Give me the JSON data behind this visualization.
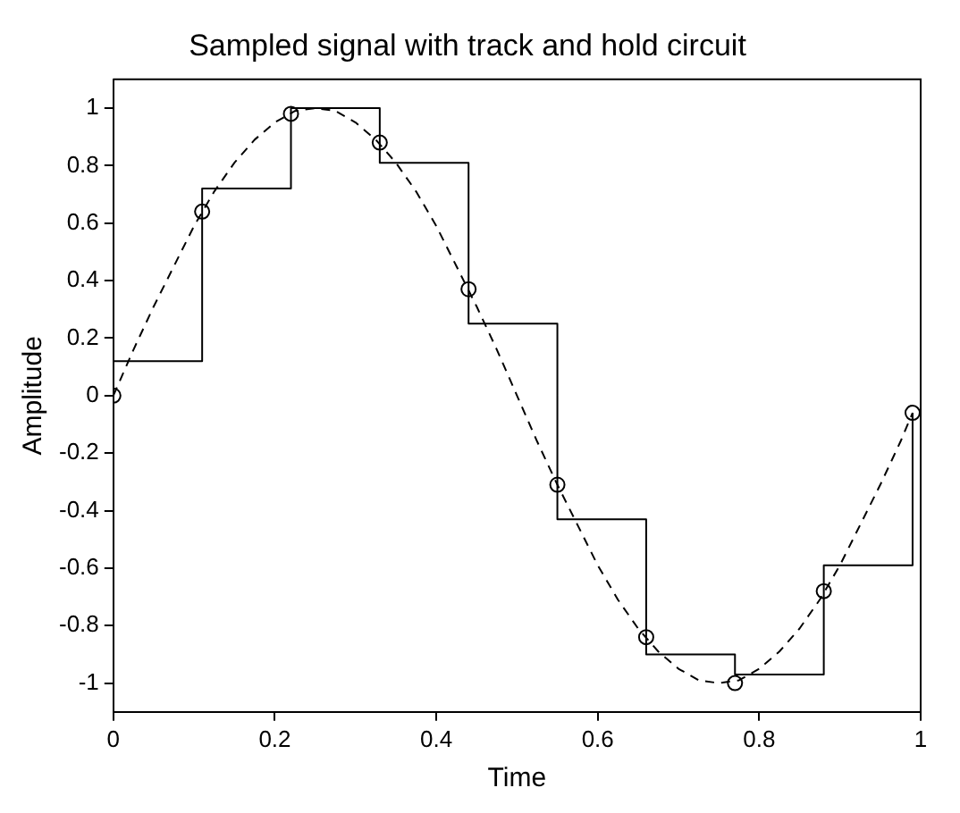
{
  "chart_data": {
    "type": "line",
    "title": "Sampled signal with track and hold circuit",
    "xlabel": "Time",
    "ylabel": "Amplitude",
    "xlim": [
      0,
      1
    ],
    "xticks": [
      0,
      0.2,
      0.4,
      0.6,
      0.8,
      1
    ],
    "ylim": [
      -1.1,
      1.1
    ],
    "yticks": [
      -1,
      -0.8,
      -0.6,
      -0.4,
      -0.2,
      0,
      0.2,
      0.4,
      0.6,
      0.8,
      1
    ],
    "grid": false,
    "legend": false,
    "series": [
      {
        "type": "line",
        "color": "#000000",
        "line_style": "dashed",
        "marker": "none",
        "x": [
          0,
          0.025,
          0.05,
          0.075,
          0.1,
          0.125,
          0.15,
          0.175,
          0.2,
          0.225,
          0.25,
          0.275,
          0.3,
          0.325,
          0.35,
          0.375,
          0.4,
          0.425,
          0.45,
          0.475,
          0.5,
          0.525,
          0.55,
          0.575,
          0.6,
          0.625,
          0.65,
          0.675,
          0.7,
          0.725,
          0.75,
          0.775,
          0.8,
          0.825,
          0.85,
          0.875,
          0.9,
          0.925,
          0.95,
          0.975,
          0.99
        ],
        "values": [
          0,
          0.16,
          0.31,
          0.45,
          0.59,
          0.71,
          0.81,
          0.89,
          0.95,
          0.99,
          1,
          0.99,
          0.95,
          0.89,
          0.81,
          0.71,
          0.59,
          0.45,
          0.31,
          0.16,
          0,
          -0.16,
          -0.31,
          -0.45,
          -0.59,
          -0.71,
          -0.81,
          -0.89,
          -0.95,
          -0.99,
          -1,
          -0.99,
          -0.95,
          -0.89,
          -0.81,
          -0.71,
          -0.59,
          -0.45,
          -0.31,
          -0.16,
          -0.06
        ]
      },
      {
        "type": "line",
        "color": "#000000",
        "line_style": "solid",
        "marker": "none",
        "x": [
          0,
          0,
          0.11,
          0.11,
          0.22,
          0.22,
          0.33,
          0.33,
          0.44,
          0.44,
          0.55,
          0.55,
          0.66,
          0.66,
          0.77,
          0.77,
          0.88,
          0.88,
          0.99,
          0.99
        ],
        "values": [
          0,
          0.12,
          0.12,
          0.72,
          0.72,
          1,
          1,
          0.81,
          0.81,
          0.25,
          0.25,
          -0.43,
          -0.43,
          -0.9,
          -0.9,
          -0.97,
          -0.97,
          -0.59,
          -0.59,
          -0.06
        ]
      },
      {
        "type": "scatter",
        "color": "#000000",
        "marker": "circle",
        "x": [
          0,
          0.11,
          0.22,
          0.33,
          0.44,
          0.55,
          0.66,
          0.77,
          0.88,
          0.99
        ],
        "values": [
          0,
          0.64,
          0.98,
          0.88,
          0.37,
          -0.31,
          -0.84,
          -1,
          -0.68,
          -0.06
        ]
      }
    ]
  }
}
